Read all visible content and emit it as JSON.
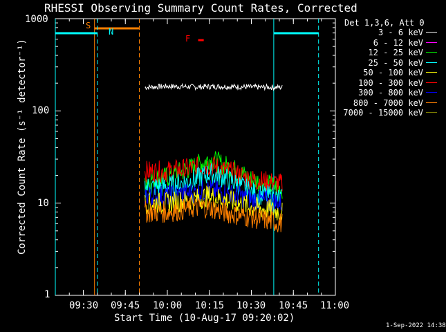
{
  "title": "RHESSI Observing Summary Count Rates, Corrected",
  "footer": "1-Sep-2022 14:38",
  "legend": {
    "header": "Det 1,3,6, Att 0",
    "entries": [
      {
        "label": "3 - 6 keV",
        "color": "#ffffff"
      },
      {
        "label": "6 - 12 keV",
        "color": "#ff00ff"
      },
      {
        "label": "12 - 25 keV",
        "color": "#00ff00"
      },
      {
        "label": "25 - 50 keV",
        "color": "#00ffff"
      },
      {
        "label": "50 - 100 keV",
        "color": "#ffff00"
      },
      {
        "label": "100 - 300 keV",
        "color": "#ff0000"
      },
      {
        "label": "300 - 800 keV",
        "color": "#0000ff"
      },
      {
        "label": "800 - 7000 keV",
        "color": "#ff8000"
      },
      {
        "label": "7000 - 15000 keV",
        "color": "#808000"
      }
    ]
  },
  "markers": {
    "s": "S",
    "n": "N",
    "f": "F"
  },
  "chart_data": {
    "type": "line",
    "title": "RHESSI Observing Summary Count Rates, Corrected",
    "xlabel": "Start Time (10-Aug-17 09:20:02)",
    "ylabel": "Corrected Count Rate (s⁻¹ detector⁻¹)",
    "y_scale": "log",
    "ylim": [
      1,
      1000
    ],
    "xlim": [
      "09:20",
      "11:00"
    ],
    "x_ticks": [
      "09:30",
      "09:45",
      "10:00",
      "10:15",
      "10:30",
      "10:45",
      "11:00"
    ],
    "y_ticks": [
      "1",
      "10",
      "100",
      "1000"
    ],
    "series": [
      {
        "name": "3 - 6 keV",
        "color": "#ffffff",
        "x": [
          "09:52",
          "10:00",
          "10:10",
          "10:20",
          "10:30",
          "10:40",
          "10:41"
        ],
        "y": [
          180,
          185,
          182,
          184,
          181,
          180,
          180
        ]
      },
      {
        "name": "12 - 25 keV",
        "color": "#00ff00",
        "x": [
          "09:52",
          "10:00",
          "10:10",
          "10:15",
          "10:20",
          "10:30",
          "10:41"
        ],
        "y": [
          18,
          19,
          25,
          30,
          26,
          18,
          14
        ]
      },
      {
        "name": "100 - 300 keV",
        "color": "#ff0000",
        "x": [
          "09:52",
          "10:00",
          "10:10",
          "10:15",
          "10:20",
          "10:30",
          "10:41"
        ],
        "y": [
          22,
          22,
          24,
          26,
          23,
          18,
          16
        ]
      },
      {
        "name": "25 - 50 keV",
        "color": "#00ffff",
        "x": [
          "09:52",
          "10:00",
          "10:10",
          "10:15",
          "10:20",
          "10:30",
          "10:41"
        ],
        "y": [
          15,
          15,
          18,
          21,
          19,
          13,
          11
        ]
      },
      {
        "name": "300 - 800 keV",
        "color": "#0000ff",
        "x": [
          "09:52",
          "10:00",
          "10:10",
          "10:15",
          "10:20",
          "10:30",
          "10:41"
        ],
        "y": [
          12,
          12,
          13,
          14,
          13,
          11,
          10
        ]
      },
      {
        "name": "50 - 100 keV",
        "color": "#ffff00",
        "x": [
          "09:52",
          "10:00",
          "10:10",
          "10:15",
          "10:20",
          "10:30",
          "10:41"
        ],
        "y": [
          10,
          10,
          11,
          12,
          11,
          9,
          8
        ]
      },
      {
        "name": "800 - 7000 keV",
        "color": "#ff8000",
        "x": [
          "09:52",
          "10:00",
          "10:10",
          "10:15",
          "10:20",
          "10:30",
          "10:41"
        ],
        "y": [
          8,
          8,
          9,
          9,
          8,
          7,
          6
        ]
      }
    ],
    "annotations": [
      {
        "label": "S",
        "type": "saa",
        "x_range": [
          "09:34",
          "09:50"
        ]
      },
      {
        "label": "N",
        "type": "night",
        "x_range": [
          "09:20",
          "09:35"
        ]
      },
      {
        "label": "N",
        "type": "night",
        "x_range": [
          "10:38",
          "10:54"
        ]
      },
      {
        "label": "F",
        "type": "flare",
        "x_range": [
          "10:11",
          "10:13"
        ]
      }
    ]
  }
}
